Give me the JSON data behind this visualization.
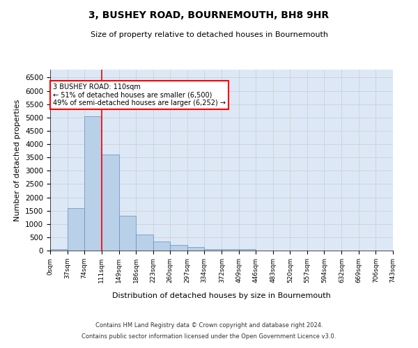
{
  "title": "3, BUSHEY ROAD, BOURNEMOUTH, BH8 9HR",
  "subtitle": "Size of property relative to detached houses in Bournemouth",
  "xlabel": "Distribution of detached houses by size in Bournemouth",
  "ylabel": "Number of detached properties",
  "footer_line1": "Contains HM Land Registry data © Crown copyright and database right 2024.",
  "footer_line2": "Contains public sector information licensed under the Open Government Licence v3.0.",
  "bar_edges": [
    0,
    37,
    74,
    111,
    149,
    186,
    223,
    260,
    297,
    334,
    372,
    409,
    446,
    483,
    520,
    557,
    594,
    632,
    669,
    706,
    743
  ],
  "bar_heights": [
    50,
    1600,
    5050,
    3600,
    1300,
    600,
    350,
    200,
    125,
    50,
    50,
    50,
    0,
    0,
    0,
    0,
    0,
    0,
    0,
    0
  ],
  "bar_color": "#b8d0e8",
  "bar_edge_color": "#6090c0",
  "property_line_x": 111,
  "annotation_text_line1": "3 BUSHEY ROAD: 110sqm",
  "annotation_text_line2": "← 51% of detached houses are smaller (6,500)",
  "annotation_text_line3": "49% of semi-detached houses are larger (6,252) →",
  "annotation_box_color": "white",
  "annotation_box_edge_color": "red",
  "line_color": "red",
  "ylim": [
    0,
    6800
  ],
  "yticks": [
    0,
    500,
    1000,
    1500,
    2000,
    2500,
    3000,
    3500,
    4000,
    4500,
    5000,
    5500,
    6000,
    6500
  ],
  "grid_color": "#cccccc",
  "background_color": "#dce8f5",
  "tick_labels": [
    "0sqm",
    "37sqm",
    "74sqm",
    "111sqm",
    "149sqm",
    "186sqm",
    "223sqm",
    "260sqm",
    "297sqm",
    "334sqm",
    "372sqm",
    "409sqm",
    "446sqm",
    "483sqm",
    "520sqm",
    "557sqm",
    "594sqm",
    "632sqm",
    "669sqm",
    "706sqm",
    "743sqm"
  ],
  "title_fontsize": 10,
  "subtitle_fontsize": 8,
  "xlabel_fontsize": 8,
  "ylabel_fontsize": 8,
  "footer_fontsize": 6
}
